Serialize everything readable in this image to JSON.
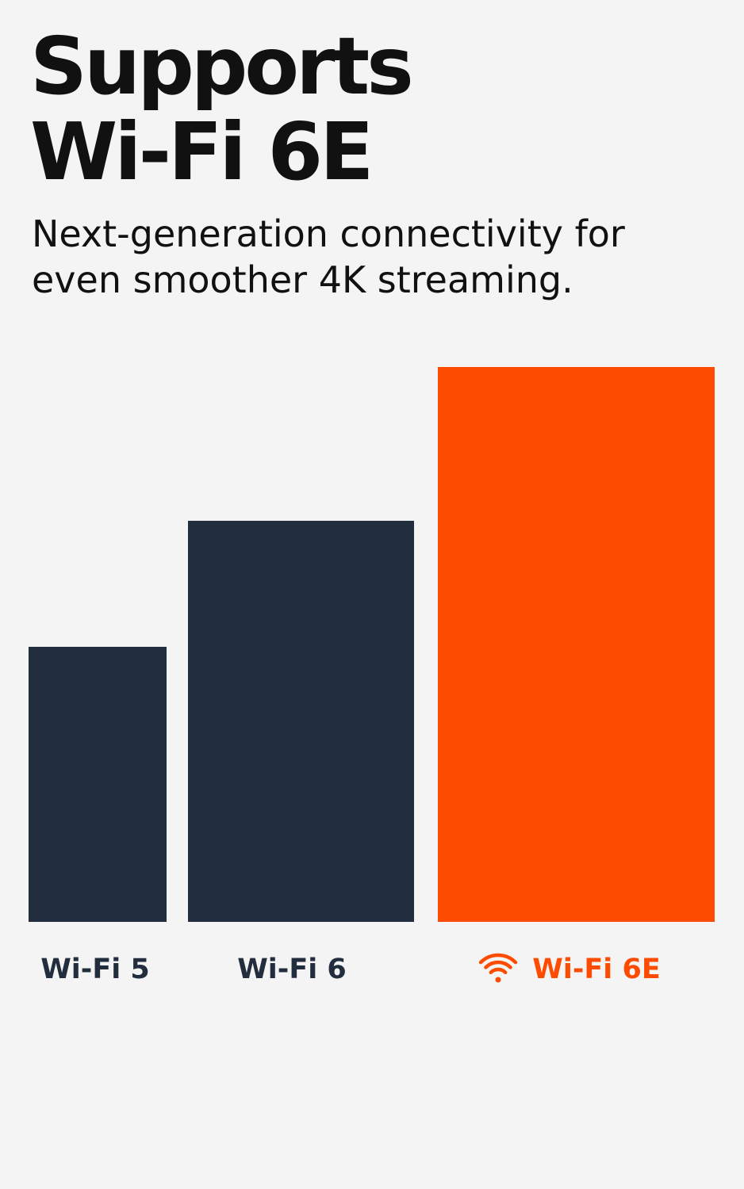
{
  "header": {
    "title_line1": "Supports",
    "title_line2": "Wi-Fi 6E",
    "subtitle_line1": "Next-generation connectivity for",
    "subtitle_line2": "even smoother 4K streaming."
  },
  "chart_data": {
    "type": "bar",
    "categories": [
      "Wi-Fi 5",
      "Wi-Fi 6",
      "Wi-Fi 6E"
    ],
    "values": [
      347,
      506,
      700
    ],
    "highlight_category": "Wi-Fi 6E",
    "highlight_icon": "wifi-icon",
    "axes_shown": false,
    "grid": false,
    "legend": "none"
  },
  "colors": {
    "background": "#f4f4f4",
    "text": "#111111",
    "bar": "#222d3d",
    "accent": "#fd4b02"
  }
}
